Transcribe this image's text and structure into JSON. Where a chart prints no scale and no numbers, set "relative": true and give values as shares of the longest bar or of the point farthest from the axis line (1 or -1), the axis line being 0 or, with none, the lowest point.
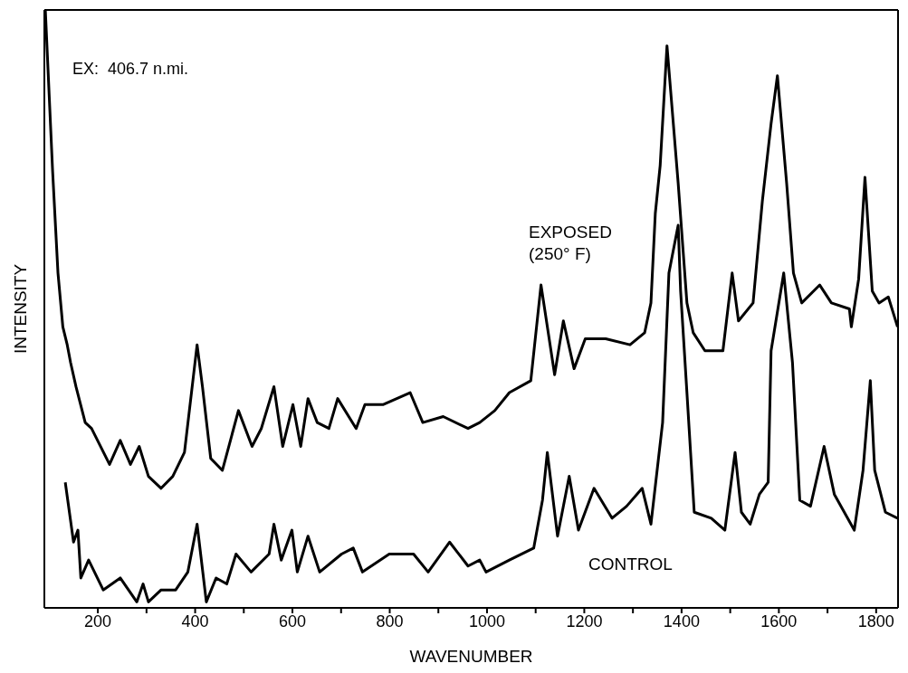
{
  "chart_data": {
    "type": "line",
    "xlabel": "WAVENUMBER",
    "ylabel": "INTENSITY",
    "annotations": [
      "EX:  406.7 n.mi."
    ],
    "relative": true,
    "xlim": [
      90,
      1845
    ],
    "xticks": [
      200,
      {
        "value": 300,
        "label": null
      },
      400,
      {
        "value": 500,
        "label": null
      },
      600,
      {
        "value": 700,
        "label": null
      },
      800,
      {
        "value": 900,
        "label": null
      },
      1000,
      {
        "value": 1100,
        "label": null
      },
      1200,
      {
        "value": 1300,
        "label": null
      },
      1400,
      {
        "value": 1500,
        "label": null
      },
      1600,
      {
        "value": 1700,
        "label": null
      },
      1800
    ],
    "series": [
      {
        "name": "EXPOSED (250° F)",
        "color": "#000000",
        "x": [
          92,
          107,
          118,
          128,
          137,
          144,
          155,
          174,
          187,
          224,
          246,
          267,
          285,
          304,
          330,
          354,
          378,
          404,
          415,
          432,
          456,
          489,
          517,
          536,
          562,
          580,
          601,
          617,
          632,
          651,
          675,
          693,
          731,
          749,
          786,
          842,
          868,
          910,
          961,
          985,
          1016,
          1046,
          1090,
          1111,
          1139,
          1157,
          1179,
          1202,
          1244,
          1294,
          1324,
          1337,
          1346,
          1356,
          1370,
          1393,
          1411,
          1424,
          1448,
          1485,
          1504,
          1517,
          1547,
          1566,
          1584,
          1597,
          1616,
          1630,
          1647,
          1684,
          1708,
          1745,
          1749,
          1764,
          1777,
          1792,
          1806,
          1825,
          1844
        ],
        "values": [
          1.0,
          0.73,
          0.56,
          0.47,
          0.44,
          0.41,
          0.37,
          0.31,
          0.3,
          0.24,
          0.28,
          0.24,
          0.27,
          0.22,
          0.2,
          0.22,
          0.26,
          0.44,
          0.37,
          0.25,
          0.23,
          0.33,
          0.27,
          0.3,
          0.37,
          0.27,
          0.34,
          0.27,
          0.35,
          0.31,
          0.3,
          0.35,
          0.3,
          0.34,
          0.34,
          0.36,
          0.31,
          0.32,
          0.3,
          0.31,
          0.33,
          0.36,
          0.38,
          0.54,
          0.39,
          0.48,
          0.4,
          0.45,
          0.45,
          0.44,
          0.46,
          0.51,
          0.66,
          0.74,
          0.94,
          0.71,
          0.51,
          0.46,
          0.43,
          0.43,
          0.56,
          0.48,
          0.51,
          0.68,
          0.81,
          0.89,
          0.71,
          0.56,
          0.51,
          0.54,
          0.51,
          0.5,
          0.47,
          0.55,
          0.72,
          0.53,
          0.51,
          0.52,
          0.47
        ]
      },
      {
        "name": "CONTROL",
        "color": "#000000",
        "x": [
          133,
          150,
          159,
          165,
          181,
          211,
          246,
          280,
          293,
          304,
          330,
          360,
          385,
          404,
          423,
          443,
          465,
          484,
          515,
          552,
          562,
          577,
          599,
          610,
          632,
          656,
          701,
          725,
          744,
          799,
          849,
          879,
          923,
          961,
          985,
          998,
          1046,
          1096,
          1114,
          1124,
          1145,
          1169,
          1188,
          1220,
          1257,
          1287,
          1319,
          1337,
          1361,
          1374,
          1393,
          1398,
          1411,
          1426,
          1461,
          1489,
          1510,
          1523,
          1541,
          1560,
          1578,
          1584,
          1610,
          1628,
          1643,
          1665,
          1693,
          1714,
          1755,
          1773,
          1788,
          1797,
          1819,
          1844
        ],
        "values": [
          0.21,
          0.11,
          0.13,
          0.05,
          0.08,
          0.03,
          0.05,
          0.01,
          0.04,
          0.01,
          0.03,
          0.03,
          0.06,
          0.14,
          0.01,
          0.05,
          0.04,
          0.09,
          0.06,
          0.09,
          0.14,
          0.08,
          0.13,
          0.06,
          0.12,
          0.06,
          0.09,
          0.1,
          0.06,
          0.09,
          0.09,
          0.06,
          0.11,
          0.07,
          0.08,
          0.06,
          0.08,
          0.1,
          0.18,
          0.26,
          0.12,
          0.22,
          0.13,
          0.2,
          0.15,
          0.17,
          0.2,
          0.14,
          0.31,
          0.56,
          0.64,
          0.53,
          0.36,
          0.16,
          0.15,
          0.13,
          0.26,
          0.16,
          0.14,
          0.19,
          0.21,
          0.43,
          0.56,
          0.41,
          0.18,
          0.17,
          0.27,
          0.19,
          0.13,
          0.23,
          0.38,
          0.23,
          0.16,
          0.15
        ]
      }
    ]
  }
}
